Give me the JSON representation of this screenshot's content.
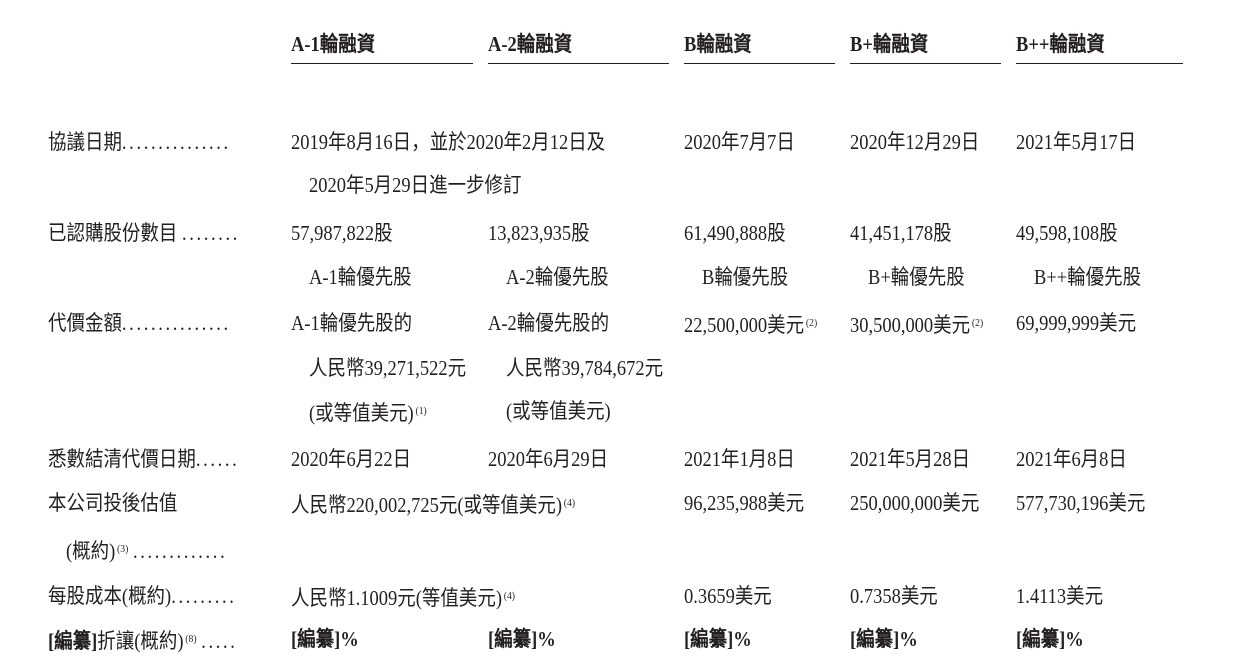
{
  "headers": [
    "A-1輪融資",
    "A-2輪融資",
    "B輪融資",
    "B+輪融資",
    "B++輪融資"
  ],
  "rows": {
    "agreement_date": {
      "label": "協議日期",
      "dots": "...............",
      "a1": [
        "2019年8月16日，並於2020年2月12日及",
        "2020年5月29日進一步修訂"
      ],
      "b": "2020年7月7日",
      "bp": "2020年12月29日",
      "bpp": "2021年5月17日"
    },
    "shares": {
      "label": "已認購股份數目",
      "dots": "........",
      "a1": [
        "57,987,822股",
        "A-1輪優先股"
      ],
      "a2": [
        "13,823,935股",
        "A-2輪優先股"
      ],
      "b": [
        "61,490,888股",
        "B輪優先股"
      ],
      "bp": [
        "41,451,178股",
        "B+輪優先股"
      ],
      "bpp": [
        "49,598,108股",
        "B++輪優先股"
      ]
    },
    "consideration": {
      "label": "代價金額",
      "dots": "...............",
      "a1": [
        "A-1輪優先股的",
        "人民幣39,271,522元",
        "(或等值美元)"
      ],
      "a1_note": "(1)",
      "a2": [
        "A-2輪優先股的",
        "人民幣39,784,672元",
        "(或等值美元)"
      ],
      "b": "22,500,000美元",
      "b_note": "(2)",
      "bp": "30,500,000美元",
      "bp_note": "(2)",
      "bpp": "69,999,999美元"
    },
    "settlement_date": {
      "label": "悉數結清代價日期",
      "dots": "......",
      "a1": "2020年6月22日",
      "a2": "2020年6月29日",
      "b": "2021年1月8日",
      "bp": "2021年5月28日",
      "bpp": "2021年6月8日"
    },
    "valuation": {
      "label": [
        "本公司投後估值",
        "(概約)"
      ],
      "label_note": "(3)",
      "dots": ".............",
      "a": "人民幣220,002,725元(或等值美元)",
      "a_note": "(4)",
      "b": "96,235,988美元",
      "bp": "250,000,000美元",
      "bpp": "577,730,196美元"
    },
    "cost_per_share": {
      "label": "每股成本(概約)",
      "dots": ".........",
      "a": "人民幣1.1009元(等值美元)",
      "a_note": "(4)",
      "b": "0.3659美元",
      "bp": "0.7358美元",
      "bpp": "1.4113美元"
    },
    "discount": {
      "label_bracket": "[編纂]",
      "label": "折讓(概約)",
      "label_note": "(8)",
      "dots": ".....",
      "values": [
        "[編纂]%",
        "[編纂]%",
        "[編纂]%",
        "[編纂]%",
        "[編纂]%"
      ]
    }
  }
}
